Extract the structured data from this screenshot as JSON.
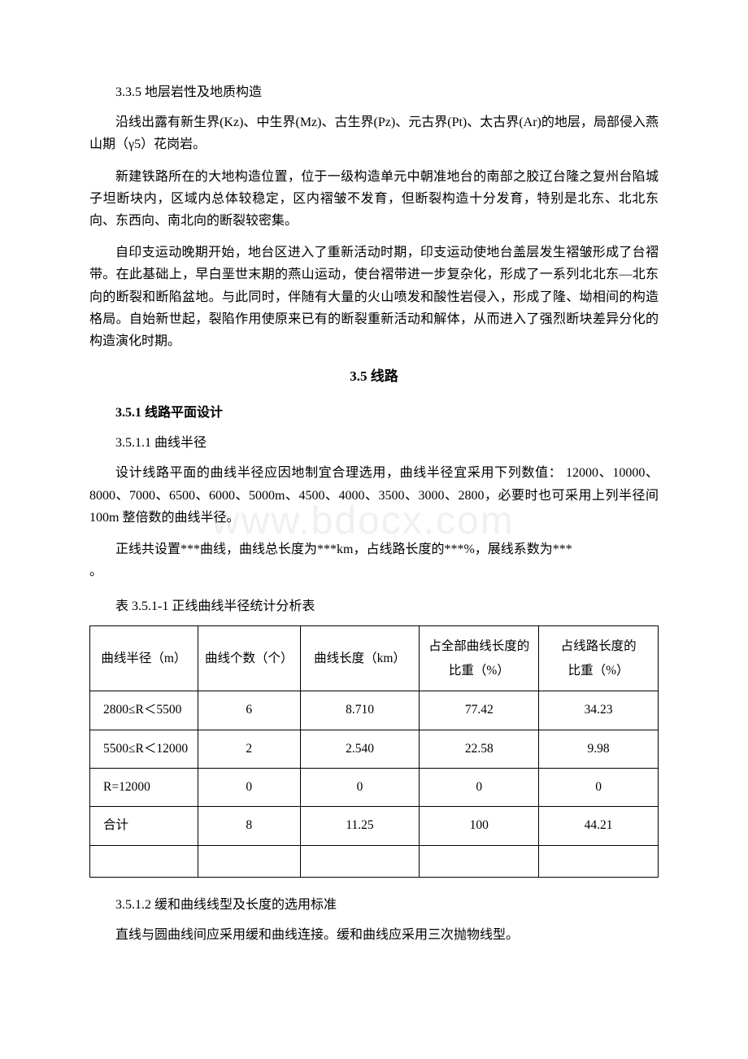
{
  "h_335": "3.3.5 地层岩性及地质构造",
  "p1": "沿线出露有新生界(Kz)、中生界(Mz)、古生界(Pz)、元古界(Pt)、太古界(Ar)的地层，局部侵入燕山期（γ5）花岗岩。",
  "p2": "新建铁路所在的大地构造位置，位于一级构造单元中朝准地台的南部之胶辽台隆之复州台陷城子坦断块内，区域内总体较稳定，区内褶皱不发育，但断裂构造十分发育，特别是北东、北北东向、东西向、南北向的断裂较密集。",
  "p3": "自印支运动晚期开始，地台区进入了重新活动时期，印支运动使地台盖层发生褶皱形成了台褶带。在此基础上，早白垩世末期的燕山运动，使台褶带进一步复杂化，形成了一系列北北东—北东向的断裂和断陷盆地。与此同时，伴随有大量的火山喷发和酸性岩侵入，形成了隆、坳相间的构造格局。自始新世起，裂陷作用使原来已有的断裂重新活动和解体，从而进入了强烈断块差异分化的构造演化时期。",
  "section_35": "3.5 线路",
  "h_351": "3.5.1 线路平面设计",
  "h_3511": "3.5.1.1 曲线半径",
  "p4": "设计线路平面的曲线半径应因地制宜合理选用，曲线半径宜采用下列数值： 12000、10000、8000、7000、6500、6000、5000m、4500、4000、3500、3000、2800，必要时也可采用上列半径间 100m 整倍数的曲线半径。",
  "p5a": "正线共设置***曲线，曲线总长度为***km，占线路长度的***%，展线系数为***",
  "p5b": "。",
  "table_caption": "表 3.5.1-1 正线曲线半径统计分析表",
  "watermark": "www.bdocx.com",
  "table": {
    "columns": [
      "曲线半径（m）",
      "曲线个数（个）",
      "曲线长度（km）",
      "占全部曲线长度的比重（%）",
      "占线路长度的\n比重（%）"
    ],
    "rows": [
      [
        "2800≤R＜5500",
        "6",
        "8.710",
        "77.42",
        "34.23"
      ],
      [
        "5500≤R＜12000",
        "2",
        "2.540",
        "22.58",
        "9.98"
      ],
      [
        "R=12000",
        "0",
        "0",
        "0",
        "0"
      ],
      [
        "合计",
        "8",
        "11.25",
        "100",
        "44.21"
      ],
      [
        "",
        "",
        "",
        "",
        ""
      ]
    ],
    "col_widths": [
      "19%",
      "18%",
      "21%",
      "21%",
      "21%"
    ]
  },
  "h_3512": "3.5.1.2 缓和曲线线型及长度的选用标准",
  "p6": "直线与圆曲线间应采用缓和曲线连接。缓和曲线应采用三次抛物线型。"
}
